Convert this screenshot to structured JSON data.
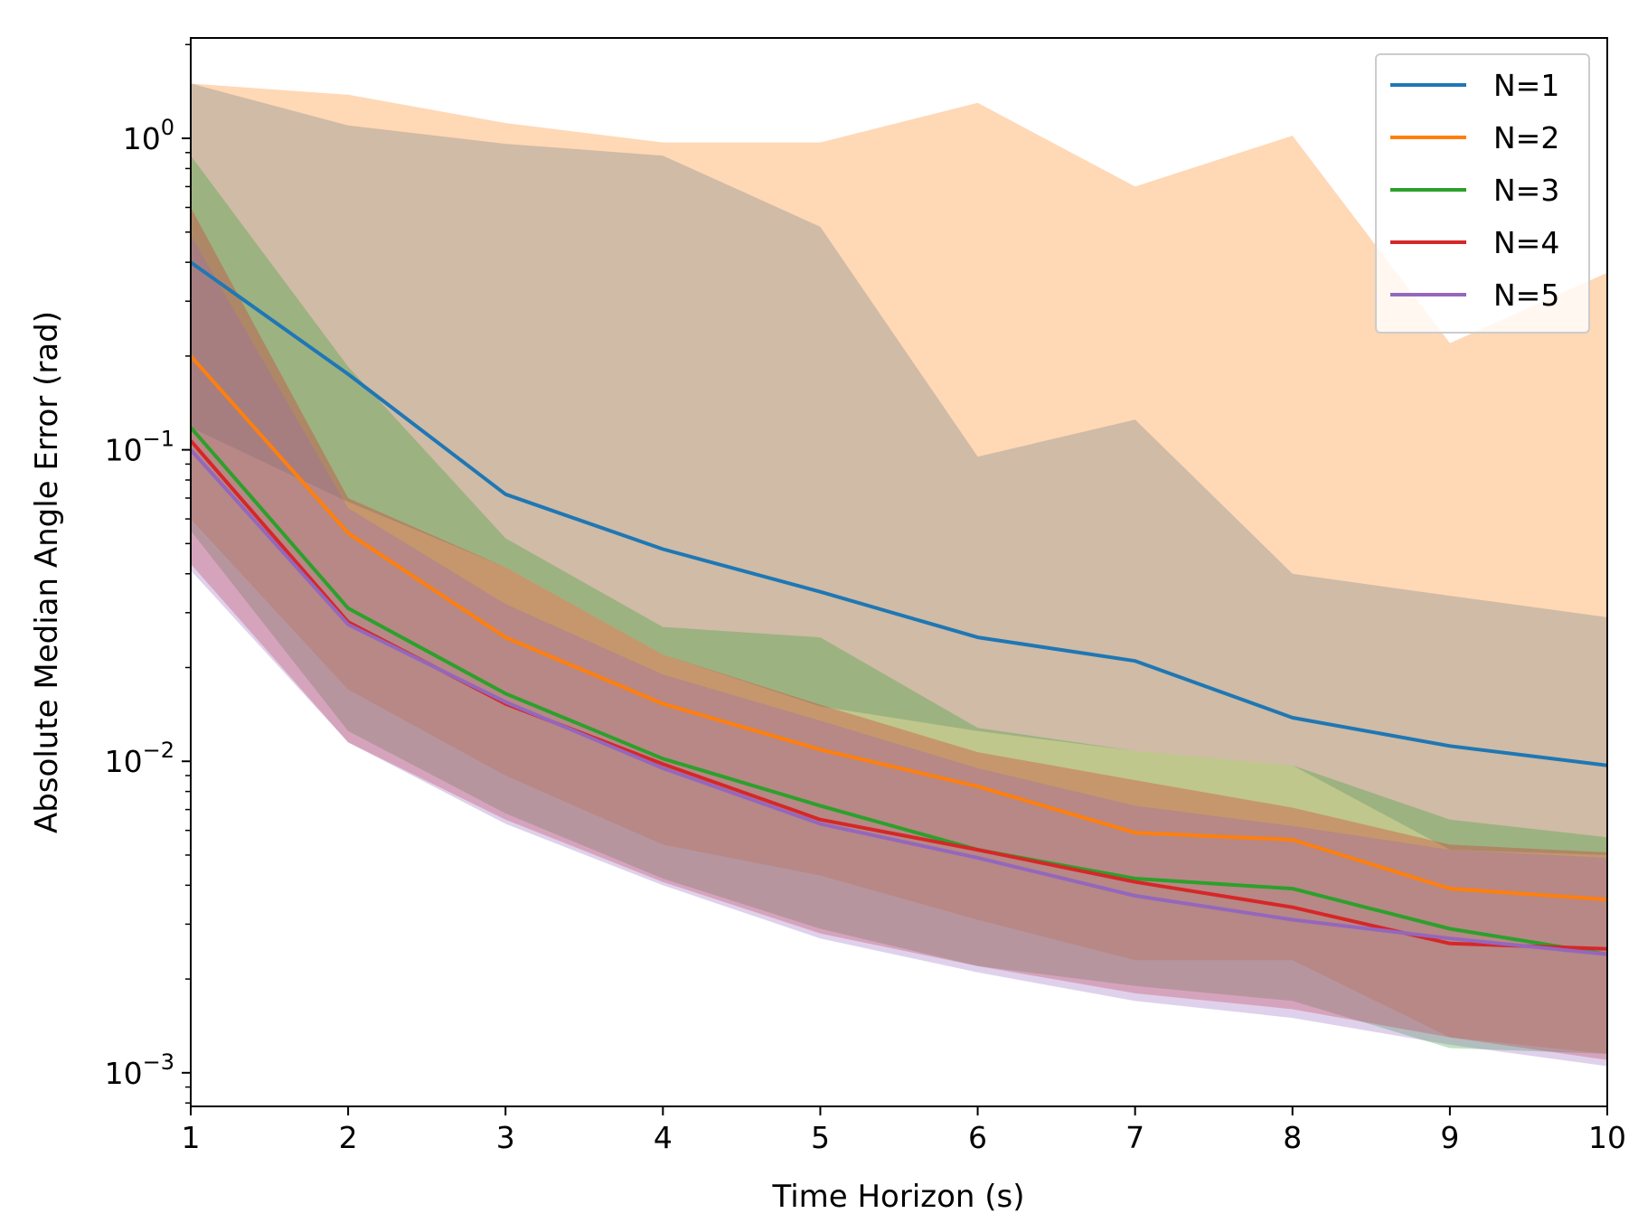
{
  "chart_data": {
    "type": "line",
    "title": "",
    "xlabel": "Time Horizon (s)",
    "ylabel": "Absolute Median Angle Error (rad)",
    "yscale": "log",
    "xlim": [
      1,
      10
    ],
    "ylim": [
      0.00078,
      2.1
    ],
    "grid": false,
    "legend_position": "top-right",
    "x": [
      1,
      2,
      3,
      4,
      5,
      6,
      7,
      8,
      9,
      10
    ],
    "x_ticks": [
      {
        "value": 1,
        "label": "1"
      },
      {
        "value": 2,
        "label": "2"
      },
      {
        "value": 3,
        "label": "3"
      },
      {
        "value": 4,
        "label": "4"
      },
      {
        "value": 5,
        "label": "5"
      },
      {
        "value": 6,
        "label": "6"
      },
      {
        "value": 7,
        "label": "7"
      },
      {
        "value": 8,
        "label": "8"
      },
      {
        "value": 9,
        "label": "9"
      },
      {
        "value": 10,
        "label": "10"
      }
    ],
    "y_major_ticks": [
      {
        "value": 0.001,
        "base": "10",
        "exp": "−3"
      },
      {
        "value": 0.01,
        "base": "10",
        "exp": "−2"
      },
      {
        "value": 0.1,
        "base": "10",
        "exp": "−1"
      },
      {
        "value": 1,
        "base": "10",
        "exp": "0"
      }
    ],
    "band_opacity": 0.3,
    "series": [
      {
        "name": "N=1",
        "color": "#1f77b4",
        "values": [
          0.4,
          0.175,
          0.072,
          0.048,
          0.035,
          0.025,
          0.021,
          0.0138,
          0.0112,
          0.0097
        ],
        "upper": [
          1.5,
          1.1,
          0.96,
          0.88,
          0.52,
          0.095,
          0.125,
          0.04,
          0.034,
          0.029
        ],
        "lower": [
          0.118,
          0.068,
          0.042,
          0.022,
          0.015,
          0.0125,
          0.0108,
          0.0097,
          0.0052,
          0.005
        ]
      },
      {
        "name": "N=2",
        "color": "#ff7f0e",
        "values": [
          0.2,
          0.054,
          0.025,
          0.0153,
          0.0109,
          0.0083,
          0.0059,
          0.0056,
          0.0039,
          0.0036
        ],
        "upper": [
          1.5,
          1.38,
          1.12,
          0.97,
          0.97,
          1.3,
          0.7,
          1.02,
          0.22,
          0.37
        ],
        "lower": [
          0.06,
          0.017,
          0.009,
          0.0054,
          0.0043,
          0.0031,
          0.0023,
          0.0023,
          0.0013,
          0.00115
        ]
      },
      {
        "name": "N=3",
        "color": "#2ca02c",
        "values": [
          0.118,
          0.031,
          0.0165,
          0.0102,
          0.0072,
          0.0052,
          0.0042,
          0.0039,
          0.0029,
          0.0024
        ],
        "upper": [
          0.88,
          0.185,
          0.052,
          0.027,
          0.025,
          0.0128,
          0.0108,
          0.0097,
          0.0065,
          0.0057
        ],
        "lower": [
          0.055,
          0.0125,
          0.0068,
          0.0042,
          0.0029,
          0.0022,
          0.0019,
          0.0017,
          0.0012,
          0.00115
        ]
      },
      {
        "name": "N=4",
        "color": "#d62728",
        "values": [
          0.107,
          0.028,
          0.0153,
          0.0098,
          0.0065,
          0.0052,
          0.0041,
          0.0034,
          0.0026,
          0.0025
        ],
        "upper": [
          0.6,
          0.07,
          0.042,
          0.022,
          0.0152,
          0.0107,
          0.0087,
          0.0071,
          0.0054,
          0.0051
        ],
        "lower": [
          0.043,
          0.0115,
          0.0065,
          0.0041,
          0.0028,
          0.0022,
          0.0018,
          0.0016,
          0.0013,
          0.0011
        ]
      },
      {
        "name": "N=5",
        "color": "#9467bd",
        "values": [
          0.1,
          0.0275,
          0.0155,
          0.0095,
          0.0063,
          0.0049,
          0.0037,
          0.0031,
          0.0027,
          0.0024
        ],
        "upper": [
          0.49,
          0.065,
          0.032,
          0.019,
          0.0135,
          0.0095,
          0.0072,
          0.0062,
          0.0052,
          0.0049
        ],
        "lower": [
          0.041,
          0.0115,
          0.0063,
          0.004,
          0.0027,
          0.0021,
          0.0017,
          0.0015,
          0.00123,
          0.00105
        ]
      }
    ]
  }
}
